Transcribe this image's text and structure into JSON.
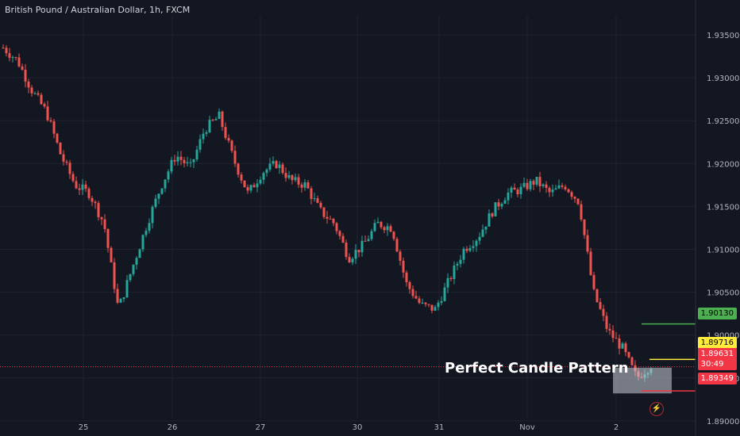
{
  "header": {
    "title": "British Pound / Australian Dollar, 1h, FXCM"
  },
  "annotations": {
    "pattern_label": "Perfect Candle Pattern"
  },
  "price_badges": {
    "target": "1.90130",
    "resistance": "1.89716",
    "current": "1.89631",
    "countdown": "30:49",
    "stop": "1.89349"
  },
  "icons": {
    "alert": "lightning-bolt-icon"
  },
  "colors": {
    "up": "#26a69a",
    "down": "#ef5350",
    "target": "#4caf50",
    "resistance": "#ffeb3b",
    "stop": "#f23645",
    "background": "#131722"
  },
  "chart_data": {
    "type": "candlestick",
    "title": "British Pound / Australian Dollar, 1h, FXCM",
    "x_ticks": [
      "25",
      "26",
      "27",
      "30",
      "31",
      "Nov",
      "2"
    ],
    "y_ticks": [
      "1.93500",
      "1.93000",
      "1.92500",
      "1.92000",
      "1.91500",
      "1.91000",
      "1.90500",
      "1.90000",
      "1.89500",
      "1.89000"
    ],
    "ylim": [
      1.887,
      1.938
    ],
    "price_path": [
      1.9335,
      1.932,
      1.9285,
      1.926,
      1.921,
      1.9175,
      1.9165,
      1.913,
      1.903,
      1.908,
      1.913,
      1.9175,
      1.921,
      1.9195,
      1.924,
      1.9255,
      1.9205,
      1.9165,
      1.919,
      1.92,
      1.918,
      1.9175,
      1.9145,
      1.913,
      1.909,
      1.9105,
      1.913,
      1.9125,
      1.906,
      1.9035,
      1.903,
      1.9065,
      1.91,
      1.9115,
      1.9145,
      1.9165,
      1.917,
      1.918,
      1.9165,
      1.9175,
      1.9155,
      1.905,
      1.9005,
      1.8985,
      1.895,
      1.8965
    ],
    "levels": [
      {
        "label": "1.90130",
        "value": 1.9013,
        "color": "#4caf50"
      },
      {
        "label": "1.89716",
        "value": 1.89716,
        "color": "#ffeb3b"
      },
      {
        "label": "1.89349",
        "value": 1.89349,
        "color": "#f23645"
      }
    ],
    "current_price": 1.89631,
    "pattern_box": {
      "y_top": 1.8962,
      "y_bottom": 1.8932
    },
    "grid": true
  }
}
